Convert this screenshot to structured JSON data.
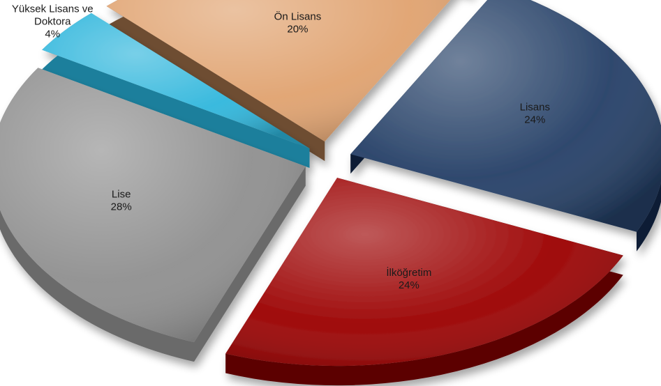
{
  "chart_data": {
    "type": "pie",
    "title": "",
    "style": "3d-exploded",
    "slices": [
      {
        "label": "Lisans",
        "value": 24,
        "display": "24%",
        "color": "#243f66",
        "side": "#101f35",
        "text_color": "#1a1a1a"
      },
      {
        "label": "İlköğretim",
        "value": 24,
        "display": "24%",
        "color": "#9b0000",
        "side": "#5c0000",
        "text_color": "#1a1a1a"
      },
      {
        "label": "Lise",
        "value": 28,
        "display": "28%",
        "color": "#8f8f8f",
        "side": "#6a6a6a",
        "text_color": "#1a1a1a"
      },
      {
        "label": "Yüksek Lisans ve Doktora",
        "value": 4,
        "display": "4%",
        "color": "#2fb6dc",
        "side": "#1c7f9c",
        "text_color": "#1a1a1a"
      },
      {
        "label": "Ön Lisans",
        "value": 20,
        "display": "20%",
        "color": "#e0a26f",
        "side": "#6e4d32",
        "text_color": "#1a1a1a"
      }
    ]
  }
}
